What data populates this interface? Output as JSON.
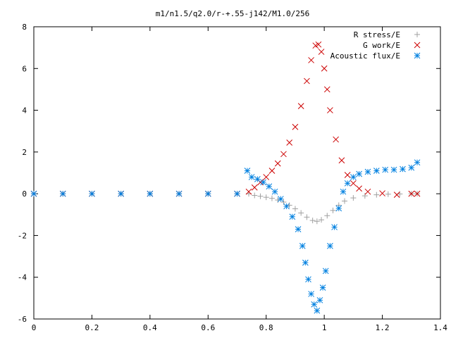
{
  "chart_data": {
    "type": "scatter",
    "title": "m1/n1.5/q2.0/r-+.55-j142/M1.0/256",
    "xlabel": "",
    "ylabel": "",
    "xlim": [
      0,
      1.4
    ],
    "ylim": [
      -6,
      8
    ],
    "x_ticks": [
      "0",
      "0.2",
      "0.4",
      "0.6",
      "0.8",
      "1",
      "1.2",
      "1.4"
    ],
    "y_ticks": [
      "-6",
      "-4",
      "-2",
      "0",
      "2",
      "4",
      "6",
      "8"
    ],
    "legend_position": "top-right",
    "grid": false,
    "series": [
      {
        "name": "R stress/E",
        "marker": "plus",
        "color": "#a0a0a0",
        "points": [
          [
            0.0,
            0
          ],
          [
            0.1,
            0
          ],
          [
            0.2,
            0
          ],
          [
            0.3,
            0
          ],
          [
            0.4,
            0
          ],
          [
            0.5,
            0
          ],
          [
            0.6,
            0
          ],
          [
            0.7,
            0
          ],
          [
            0.74,
            0
          ],
          [
            0.76,
            -0.08
          ],
          [
            0.78,
            -0.12
          ],
          [
            0.8,
            -0.17
          ],
          [
            0.82,
            -0.22
          ],
          [
            0.84,
            -0.3
          ],
          [
            0.86,
            -0.4
          ],
          [
            0.88,
            -0.55
          ],
          [
            0.9,
            -0.72
          ],
          [
            0.92,
            -0.92
          ],
          [
            0.94,
            -1.12
          ],
          [
            0.96,
            -1.28
          ],
          [
            0.975,
            -1.32
          ],
          [
            0.99,
            -1.25
          ],
          [
            1.01,
            -1.05
          ],
          [
            1.03,
            -0.8
          ],
          [
            1.05,
            -0.55
          ],
          [
            1.07,
            -0.35
          ],
          [
            1.1,
            -0.2
          ],
          [
            1.14,
            -0.1
          ],
          [
            1.18,
            -0.05
          ],
          [
            1.22,
            -0.02
          ],
          [
            1.26,
            -0.01
          ],
          [
            1.3,
            0
          ],
          [
            1.32,
            0
          ]
        ]
      },
      {
        "name": "G work/E",
        "marker": "cross",
        "color": "#cc0000",
        "points": [
          [
            0.0,
            0
          ],
          [
            0.1,
            0
          ],
          [
            0.2,
            0
          ],
          [
            0.3,
            0
          ],
          [
            0.4,
            0
          ],
          [
            0.5,
            0
          ],
          [
            0.6,
            0
          ],
          [
            0.7,
            0
          ],
          [
            0.74,
            0.1
          ],
          [
            0.76,
            0.3
          ],
          [
            0.78,
            0.55
          ],
          [
            0.8,
            0.8
          ],
          [
            0.82,
            1.1
          ],
          [
            0.84,
            1.45
          ],
          [
            0.86,
            1.9
          ],
          [
            0.88,
            2.45
          ],
          [
            0.9,
            3.2
          ],
          [
            0.92,
            4.2
          ],
          [
            0.94,
            5.4
          ],
          [
            0.955,
            6.4
          ],
          [
            0.97,
            7.1
          ],
          [
            0.98,
            7.15
          ],
          [
            0.99,
            6.8
          ],
          [
            1.0,
            6.0
          ],
          [
            1.01,
            5.0
          ],
          [
            1.02,
            4.0
          ],
          [
            1.04,
            2.6
          ],
          [
            1.06,
            1.6
          ],
          [
            1.08,
            0.9
          ],
          [
            1.1,
            0.5
          ],
          [
            1.12,
            0.25
          ],
          [
            1.15,
            0.1
          ],
          [
            1.2,
            0.02
          ],
          [
            1.25,
            -0.05
          ],
          [
            1.3,
            0.0
          ],
          [
            1.32,
            0.0
          ]
        ]
      },
      {
        "name": "Acoustic flux/E",
        "marker": "star",
        "color": "#0080e0",
        "points": [
          [
            0.0,
            0
          ],
          [
            0.1,
            0
          ],
          [
            0.2,
            0
          ],
          [
            0.3,
            0
          ],
          [
            0.4,
            0
          ],
          [
            0.5,
            0
          ],
          [
            0.6,
            0
          ],
          [
            0.7,
            0
          ],
          [
            0.735,
            1.1
          ],
          [
            0.75,
            0.8
          ],
          [
            0.77,
            0.7
          ],
          [
            0.79,
            0.55
          ],
          [
            0.81,
            0.35
          ],
          [
            0.83,
            0.1
          ],
          [
            0.85,
            -0.25
          ],
          [
            0.87,
            -0.6
          ],
          [
            0.89,
            -1.1
          ],
          [
            0.91,
            -1.7
          ],
          [
            0.925,
            -2.5
          ],
          [
            0.935,
            -3.3
          ],
          [
            0.945,
            -4.1
          ],
          [
            0.955,
            -4.8
          ],
          [
            0.965,
            -5.3
          ],
          [
            0.975,
            -5.6
          ],
          [
            0.985,
            -5.1
          ],
          [
            0.995,
            -4.5
          ],
          [
            1.005,
            -3.7
          ],
          [
            1.02,
            -2.5
          ],
          [
            1.035,
            -1.6
          ],
          [
            1.05,
            -0.7
          ],
          [
            1.065,
            0.1
          ],
          [
            1.08,
            0.5
          ],
          [
            1.1,
            0.8
          ],
          [
            1.12,
            0.95
          ],
          [
            1.15,
            1.05
          ],
          [
            1.18,
            1.1
          ],
          [
            1.21,
            1.15
          ],
          [
            1.24,
            1.15
          ],
          [
            1.27,
            1.18
          ],
          [
            1.3,
            1.25
          ],
          [
            1.32,
            1.5
          ]
        ]
      }
    ]
  }
}
